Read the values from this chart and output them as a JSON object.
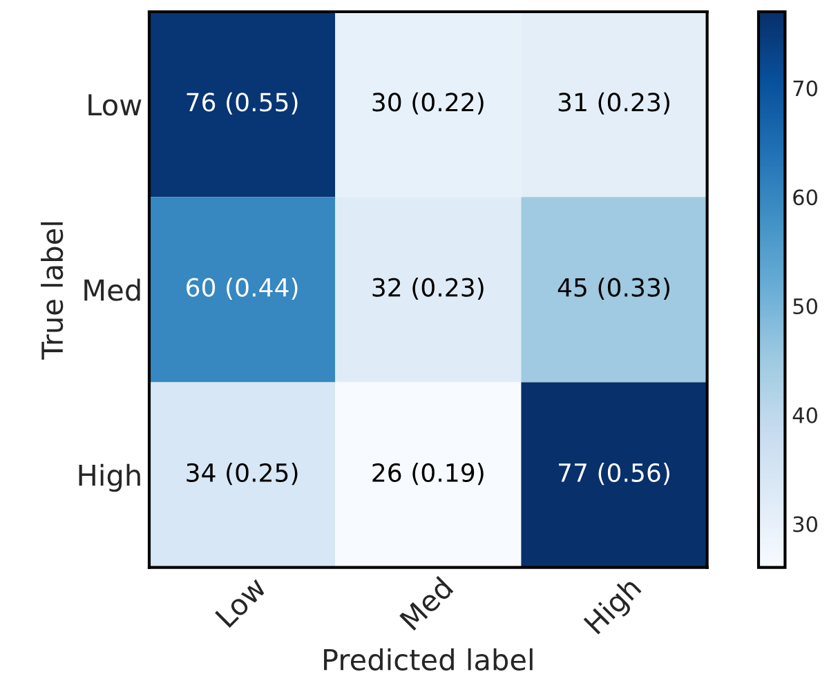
{
  "chart_data": {
    "type": "heatmap",
    "xlabel": "Predicted label",
    "ylabel": "True label",
    "categories": [
      "Low",
      "Med",
      "High"
    ],
    "y_categories": [
      "Low",
      "Med",
      "High"
    ],
    "cells": [
      [
        76,
        30,
        31
      ],
      [
        60,
        32,
        45
      ],
      [
        34,
        26,
        77
      ]
    ],
    "cell_labels": [
      [
        "76 (0.55)",
        "30 (0.22)",
        "31 (0.23)"
      ],
      [
        "60 (0.44)",
        "32 (0.23)",
        "45 (0.33)"
      ],
      [
        "34 (0.25)",
        "26 (0.19)",
        "77 (0.56)"
      ]
    ],
    "clim": [
      26,
      77
    ],
    "cticks": [
      30,
      40,
      50,
      60,
      70
    ],
    "grid": false
  }
}
